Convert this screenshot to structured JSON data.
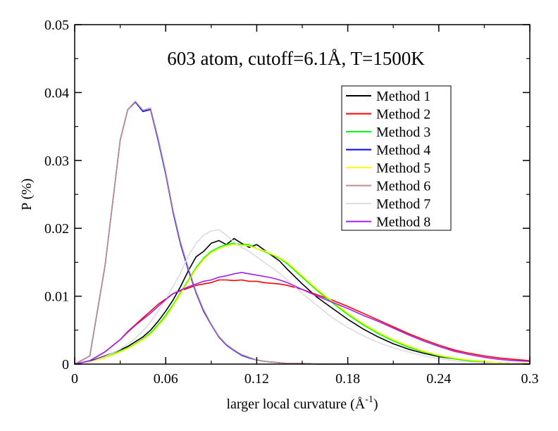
{
  "chart_data": {
    "type": "line",
    "title": "603 atom, cutoff=6.1Å, T=1500K",
    "xlabel": "larger local curvature (Å",
    "xlabel_sup": "-1",
    "xlabel_suffix": ")",
    "ylabel": "P (%)",
    "xlim": [
      0,
      0.3
    ],
    "ylim": [
      0,
      0.05
    ],
    "xticks": [
      0,
      0.06,
      0.12,
      0.18,
      0.24,
      0.3
    ],
    "xtick_labels": [
      "0",
      "0.06",
      "0.12",
      "0.18",
      "0.24",
      "0.3"
    ],
    "yticks": [
      0,
      0.01,
      0.02,
      0.03,
      0.04,
      0.05
    ],
    "ytick_labels": [
      "0",
      "0.01",
      "0.02",
      "0.03",
      "0.04",
      "0.05"
    ],
    "grid": false,
    "legend_position": "top-right",
    "x": [
      0,
      0.01,
      0.02,
      0.03,
      0.035,
      0.04,
      0.045,
      0.05,
      0.055,
      0.06,
      0.065,
      0.07,
      0.075,
      0.08,
      0.085,
      0.09,
      0.095,
      0.1,
      0.105,
      0.11,
      0.115,
      0.12,
      0.125,
      0.13,
      0.135,
      0.14,
      0.15,
      0.16,
      0.17,
      0.18,
      0.19,
      0.2,
      0.21,
      0.22,
      0.23,
      0.24,
      0.25,
      0.26,
      0.27,
      0.28,
      0.29,
      0.3
    ],
    "series": [
      {
        "name": "Method 1",
        "color": "#000000",
        "values": [
          0,
          0.0004,
          0.0012,
          0.0021,
          0.0026,
          0.0033,
          0.004,
          0.005,
          0.0063,
          0.0078,
          0.0095,
          0.0115,
          0.0138,
          0.0158,
          0.0166,
          0.0178,
          0.0182,
          0.0176,
          0.0185,
          0.0178,
          0.0172,
          0.0176,
          0.0168,
          0.016,
          0.0152,
          0.014,
          0.0118,
          0.0098,
          0.0082,
          0.0066,
          0.0052,
          0.004,
          0.003,
          0.0022,
          0.0016,
          0.0011,
          0.0008,
          0.0005,
          0.0003,
          0.0002,
          0.0001,
          0.0001
        ]
      },
      {
        "name": "Method 2",
        "color": "#ff0000",
        "values": [
          0,
          0.0005,
          0.0018,
          0.0036,
          0.0048,
          0.0058,
          0.0068,
          0.0078,
          0.0088,
          0.0096,
          0.0104,
          0.0108,
          0.0112,
          0.0116,
          0.0118,
          0.012,
          0.0124,
          0.0124,
          0.0123,
          0.0124,
          0.0122,
          0.0122,
          0.012,
          0.0119,
          0.0118,
          0.0116,
          0.011,
          0.0102,
          0.0094,
          0.0085,
          0.0075,
          0.0065,
          0.0055,
          0.0045,
          0.0036,
          0.0028,
          0.0021,
          0.0016,
          0.0012,
          0.0009,
          0.0007,
          0.0005
        ]
      },
      {
        "name": "Method 3",
        "color": "#00ff00",
        "values": [
          0,
          0.0003,
          0.001,
          0.0019,
          0.0024,
          0.003,
          0.0037,
          0.0046,
          0.0058,
          0.0072,
          0.0088,
          0.0106,
          0.0124,
          0.0142,
          0.0156,
          0.0166,
          0.0172,
          0.0176,
          0.0178,
          0.0176,
          0.0176,
          0.017,
          0.0166,
          0.0161,
          0.0156,
          0.0148,
          0.0128,
          0.0108,
          0.009,
          0.0073,
          0.0058,
          0.0045,
          0.0034,
          0.0025,
          0.0018,
          0.0012,
          0.0008,
          0.0005,
          0.0003,
          0.0002,
          0.0001,
          0.0001
        ]
      },
      {
        "name": "Method 4",
        "color": "#0000ff",
        "values": [
          0,
          0.0012,
          0.0145,
          0.033,
          0.0375,
          0.0386,
          0.0372,
          0.0375,
          0.033,
          0.028,
          0.0222,
          0.0175,
          0.0138,
          0.0105,
          0.0078,
          0.0058,
          0.004,
          0.0028,
          0.002,
          0.0013,
          0.0009,
          0.0006,
          0.0004,
          0.0003,
          0.0002,
          0.0001,
          0.0001,
          0,
          0,
          0,
          0,
          0,
          0,
          0,
          0,
          0,
          0,
          0,
          0,
          0,
          0,
          0
        ]
      },
      {
        "name": "Method 5",
        "color": "#ffff00",
        "values": [
          0,
          0.0003,
          0.0009,
          0.0018,
          0.0023,
          0.0029,
          0.0036,
          0.0044,
          0.0056,
          0.0069,
          0.0086,
          0.0104,
          0.0122,
          0.014,
          0.0154,
          0.0164,
          0.017,
          0.0174,
          0.0176,
          0.0175,
          0.0174,
          0.017,
          0.0167,
          0.0162,
          0.0157,
          0.015,
          0.013,
          0.011,
          0.0092,
          0.0075,
          0.006,
          0.0047,
          0.0036,
          0.0027,
          0.0019,
          0.0013,
          0.0009,
          0.0006,
          0.0004,
          0.0002,
          0.0001,
          0.0001
        ]
      },
      {
        "name": "Method 6",
        "color": "#bc8f8f",
        "values": [
          0,
          0.0012,
          0.0145,
          0.033,
          0.0375,
          0.0387,
          0.0374,
          0.0377,
          0.0333,
          0.0283,
          0.0225,
          0.0178,
          0.0141,
          0.0107,
          0.008,
          0.0059,
          0.0041,
          0.0029,
          0.0021,
          0.0014,
          0.001,
          0.0006,
          0.0004,
          0.0003,
          0.0002,
          0.0001,
          0.0001,
          0,
          0,
          0,
          0,
          0,
          0,
          0,
          0,
          0,
          0,
          0,
          0,
          0,
          0,
          0
        ]
      },
      {
        "name": "Method 7",
        "color": "#dcdcdc",
        "values": [
          0,
          0.0003,
          0.0011,
          0.0022,
          0.003,
          0.0038,
          0.0049,
          0.0062,
          0.0078,
          0.0095,
          0.0115,
          0.0135,
          0.016,
          0.0178,
          0.019,
          0.0196,
          0.0198,
          0.019,
          0.018,
          0.0172,
          0.0166,
          0.0158,
          0.015,
          0.0142,
          0.0134,
          0.0124,
          0.0104,
          0.0086,
          0.0068,
          0.0054,
          0.0042,
          0.0032,
          0.0024,
          0.0018,
          0.0012,
          0.0008,
          0.0005,
          0.0003,
          0.0002,
          0.0001,
          0.0001,
          0
        ]
      },
      {
        "name": "Method 8",
        "color": "#a020f0",
        "values": [
          0,
          0.0005,
          0.0018,
          0.0036,
          0.0047,
          0.0057,
          0.0066,
          0.0075,
          0.0085,
          0.0095,
          0.0104,
          0.0109,
          0.0114,
          0.0118,
          0.0122,
          0.0124,
          0.0128,
          0.013,
          0.0133,
          0.0135,
          0.0133,
          0.0131,
          0.0129,
          0.0127,
          0.0124,
          0.012,
          0.011,
          0.01,
          0.0091,
          0.0082,
          0.0072,
          0.0063,
          0.0053,
          0.0043,
          0.0034,
          0.0026,
          0.0019,
          0.0014,
          0.001,
          0.0007,
          0.0005,
          0.0004
        ]
      }
    ]
  }
}
